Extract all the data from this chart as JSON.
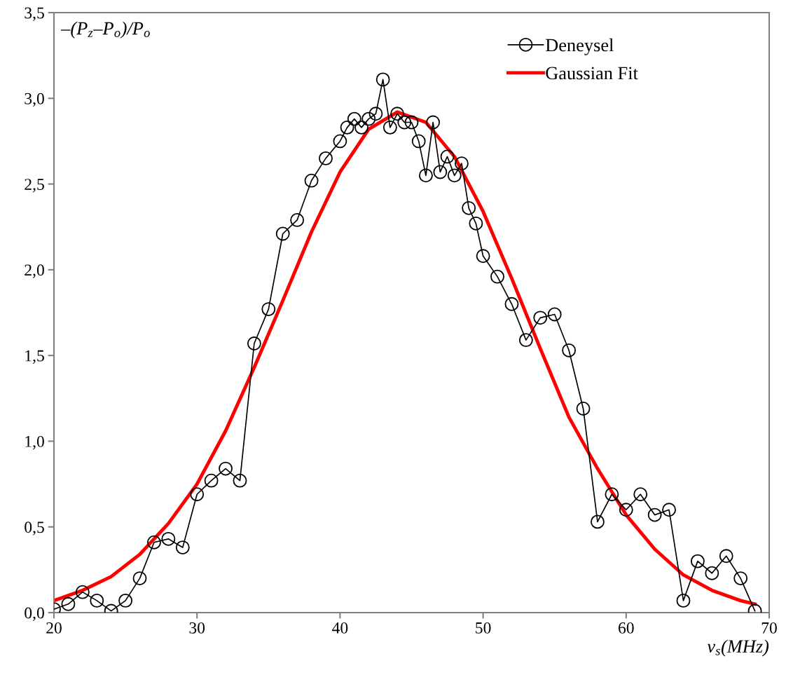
{
  "chart_data": {
    "type": "line",
    "xlabel": "v$_{s}$(MHz)",
    "ylabel": "–(P$_{z}$–P$_{o}$)/P$_{o}$",
    "xlim": [
      20,
      70
    ],
    "xticks": [
      20,
      30,
      40,
      50,
      60,
      70
    ],
    "ylim": [
      0,
      3.5
    ],
    "yticks": [
      {
        "value": 0,
        "label": "0,0"
      },
      {
        "value": 0.5,
        "label": "0,5"
      },
      {
        "value": 1,
        "label": "1,0"
      },
      {
        "value": 1.5,
        "label": "1,5"
      },
      {
        "value": 2,
        "label": "2,0"
      },
      {
        "value": 2.5,
        "label": "2,5"
      },
      {
        "value": 3,
        "label": "3,0"
      },
      {
        "value": 3.5,
        "label": "3,5"
      }
    ],
    "grid": false,
    "legend": "top right",
    "series": [
      {
        "name": "Deneysel",
        "color": "#000000",
        "marker": "circle",
        "x": [
          20,
          21,
          22,
          23,
          24,
          25,
          26,
          27,
          28,
          29,
          30,
          31,
          32,
          33,
          34,
          35,
          36,
          37,
          38,
          39,
          40,
          40.5,
          41,
          41.5,
          42,
          42.5,
          43,
          43.5,
          44,
          44.5,
          45,
          45.5,
          46,
          46.5,
          47,
          47.5,
          48,
          48.5,
          49,
          49.5,
          50,
          51,
          52,
          53,
          54,
          55,
          56,
          57,
          58,
          59,
          60,
          61,
          62,
          63,
          64,
          65,
          66,
          67,
          68,
          69
        ],
        "values": [
          0.02,
          0.05,
          0.12,
          0.07,
          0.01,
          0.07,
          0.2,
          0.41,
          0.43,
          0.38,
          0.69,
          0.77,
          0.84,
          0.77,
          1.57,
          1.77,
          2.21,
          2.29,
          2.52,
          2.65,
          2.75,
          2.83,
          2.88,
          2.83,
          2.88,
          2.91,
          3.11,
          2.83,
          2.91,
          2.86,
          2.86,
          2.75,
          2.55,
          2.86,
          2.57,
          2.66,
          2.55,
          2.62,
          2.36,
          2.27,
          2.08,
          1.96,
          1.8,
          1.59,
          1.72,
          1.74,
          1.53,
          1.19,
          0.53,
          0.69,
          0.6,
          0.69,
          0.57,
          0.6,
          0.07,
          0.3,
          0.23,
          0.33,
          0.2,
          0.01
        ]
      },
      {
        "name": "Gaussian Fit",
        "color": "#ff0000",
        "marker": "none",
        "x": [
          20,
          22,
          24,
          26,
          28,
          30,
          32,
          34,
          36,
          38,
          40,
          42,
          44,
          46,
          48,
          50,
          52,
          54,
          56,
          58,
          60,
          62,
          64,
          66,
          68,
          69
        ],
        "values": [
          0.07,
          0.13,
          0.21,
          0.34,
          0.52,
          0.75,
          1.06,
          1.43,
          1.82,
          2.22,
          2.57,
          2.82,
          2.92,
          2.86,
          2.66,
          2.34,
          1.95,
          1.54,
          1.14,
          0.84,
          0.57,
          0.37,
          0.22,
          0.13,
          0.07,
          0.05
        ]
      }
    ]
  }
}
